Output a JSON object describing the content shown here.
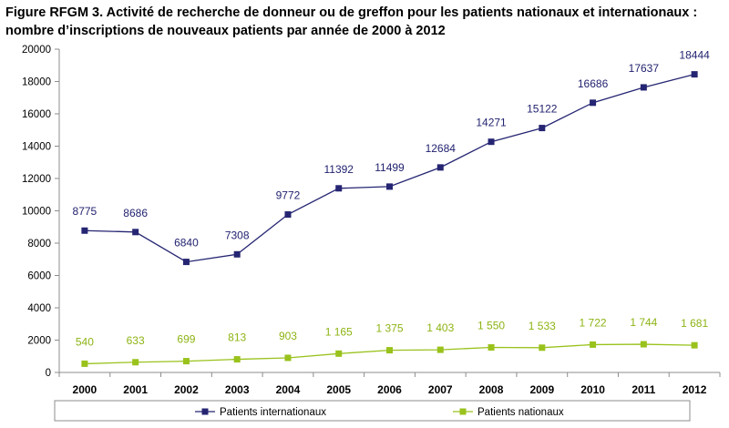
{
  "chart_data": {
    "type": "line",
    "title": "Figure RFGM 3. Activité de recherche de donneur ou de greffon pour les patients nationaux et internationaux : nombre d’inscriptions de nouveaux patients par année de 2000 à 2012",
    "x": [
      "2000",
      "2001",
      "2002",
      "2003",
      "2004",
      "2005",
      "2006",
      "2007",
      "2008",
      "2009",
      "2010",
      "2011",
      "2012"
    ],
    "ylim": [
      0,
      20000
    ],
    "yticks": [
      "0",
      "2000",
      "4000",
      "6000",
      "8000",
      "10000",
      "12000",
      "14000",
      "16000",
      "18000",
      "20000"
    ],
    "grid": false,
    "legend_position": "bottom",
    "series": [
      {
        "name": "Patients internationaux",
        "color": "#252573",
        "marker": "square",
        "values": [
          8775,
          8686,
          6840,
          7308,
          9772,
          11392,
          11499,
          12684,
          14271,
          15122,
          16686,
          17637,
          18444
        ],
        "labels": [
          "8775",
          "8686",
          "6840",
          "7308",
          "9772",
          "11392",
          "11499",
          "12684",
          "14271",
          "15122",
          "16686",
          "17637",
          "18444"
        ]
      },
      {
        "name": "Patients nationaux",
        "color": "#99c21c",
        "marker": "square",
        "values": [
          540,
          633,
          699,
          813,
          903,
          1165,
          1375,
          1403,
          1550,
          1533,
          1722,
          1744,
          1681
        ],
        "labels": [
          "540",
          "633",
          "699",
          "813",
          "903",
          "1 165",
          "1 375",
          "1 403",
          "1 550",
          "1 533",
          "1 722",
          "1 744",
          "1 681"
        ]
      }
    ]
  }
}
